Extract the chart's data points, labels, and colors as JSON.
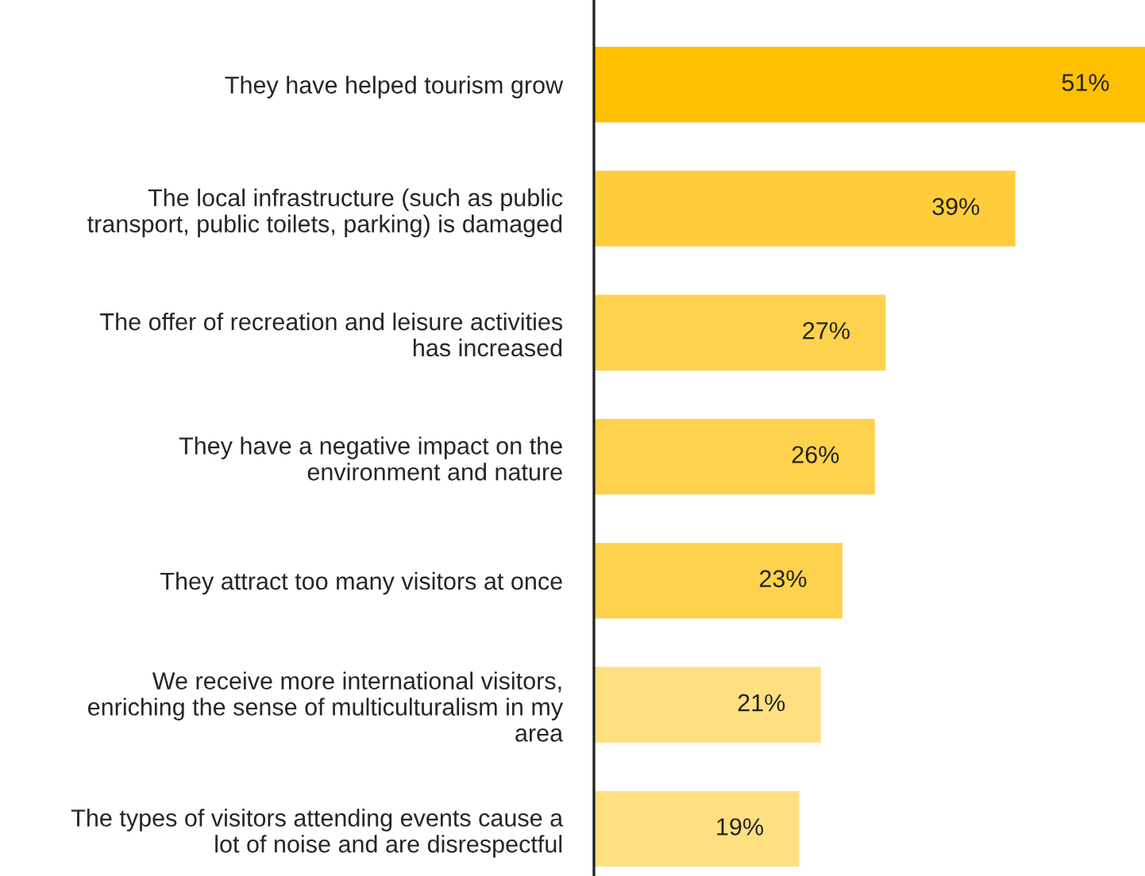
{
  "chart_data": {
    "type": "bar",
    "orientation": "horizontal",
    "categories": [
      "They have helped tourism grow",
      "The local infrastructure (such as public\ntransport, public toilets, parking) is damaged",
      "The offer of recreation and leisure activities\nhas increased",
      "They have a negative impact on the\nenvironment and nature",
      "They attract too many visitors at once",
      "We receive more international visitors,\nenriching the sense of multiculturalism in my\narea",
      "The types of visitors attending events cause a\nlot of noise and are disrespectful"
    ],
    "values": [
      51,
      39,
      27,
      26,
      23,
      21,
      19
    ],
    "value_labels": [
      "51%",
      "39%",
      "27%",
      "26%",
      "23%",
      "21%",
      "19%"
    ],
    "colors": [
      "#ffc000",
      "#ffcd3c",
      "#ffd24d",
      "#ffd24d",
      "#ffd24d",
      "#ffdf80",
      "#ffdf80"
    ]
  }
}
